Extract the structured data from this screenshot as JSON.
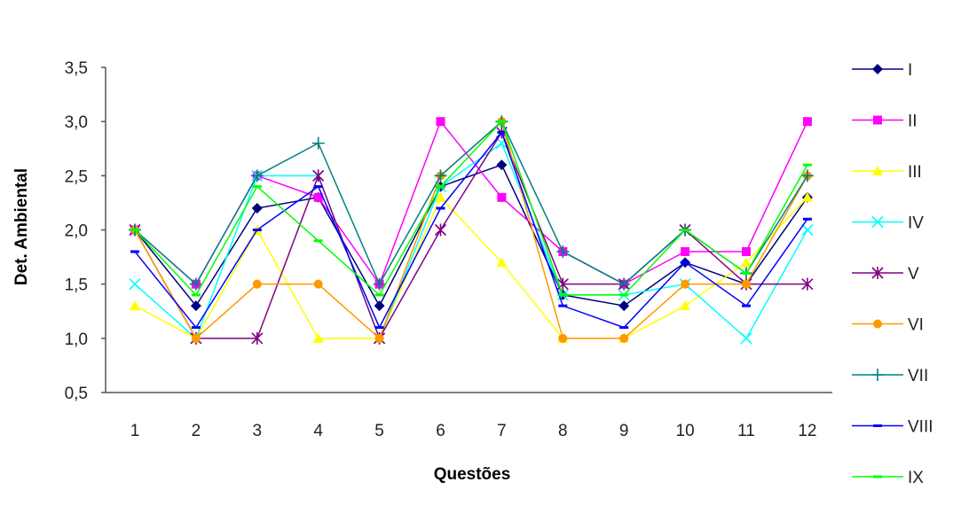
{
  "chart_data": {
    "type": "line",
    "title": "",
    "xlabel": "Questões",
    "ylabel": "Det. Ambiental",
    "ylim": [
      0.5,
      3.5
    ],
    "y_ticks": [
      "0,5",
      "1,0",
      "1,5",
      "2,0",
      "2,5",
      "3,0",
      "3,5"
    ],
    "categories": [
      "1",
      "2",
      "3",
      "4",
      "5",
      "6",
      "7",
      "8",
      "9",
      "10",
      "11",
      "12"
    ],
    "grid": false,
    "legend_position": "right",
    "series": [
      {
        "name": "I",
        "color": "#000080",
        "marker": "diamond",
        "values": [
          2.0,
          1.3,
          2.2,
          2.3,
          1.3,
          2.4,
          2.6,
          1.4,
          1.3,
          1.7,
          1.5,
          2.3
        ]
      },
      {
        "name": "II",
        "color": "#FF00FF",
        "marker": "square",
        "values": [
          2.0,
          1.5,
          2.5,
          2.3,
          1.5,
          3.0,
          2.3,
          1.8,
          1.5,
          1.8,
          1.8,
          3.0
        ]
      },
      {
        "name": "III",
        "color": "#FFFF00",
        "marker": "triangle",
        "values": [
          1.3,
          1.0,
          2.0,
          1.0,
          1.0,
          2.3,
          1.7,
          1.0,
          1.0,
          1.3,
          1.7,
          2.3
        ]
      },
      {
        "name": "IV",
        "color": "#00FFFF",
        "marker": "x",
        "values": [
          1.5,
          1.0,
          2.5,
          2.5,
          1.0,
          2.4,
          2.8,
          1.4,
          1.4,
          1.5,
          1.0,
          2.0
        ]
      },
      {
        "name": "V",
        "color": "#800080",
        "marker": "asterisk",
        "values": [
          2.0,
          1.0,
          1.0,
          2.5,
          1.0,
          2.0,
          2.9,
          1.5,
          1.5,
          2.0,
          1.5,
          1.5
        ]
      },
      {
        "name": "VI",
        "color": "#FF9900",
        "marker": "circle",
        "values": [
          2.0,
          1.0,
          1.5,
          1.5,
          1.0,
          2.5,
          3.0,
          1.0,
          1.0,
          1.5,
          1.5,
          2.5
        ]
      },
      {
        "name": "VII",
        "color": "#008080",
        "marker": "plus",
        "values": [
          2.0,
          1.5,
          2.5,
          2.8,
          1.5,
          2.5,
          3.0,
          1.8,
          1.5,
          2.0,
          1.6,
          2.5
        ]
      },
      {
        "name": "VIII",
        "color": "#0000FF",
        "marker": "dash",
        "values": [
          1.8,
          1.1,
          2.0,
          2.4,
          1.1,
          2.2,
          2.9,
          1.3,
          1.1,
          1.7,
          1.3,
          2.1
        ]
      },
      {
        "name": "IX",
        "color": "#00FF00",
        "marker": "dash",
        "values": [
          2.0,
          1.4,
          2.4,
          1.9,
          1.4,
          2.4,
          3.0,
          1.4,
          1.4,
          2.0,
          1.6,
          2.6
        ]
      }
    ]
  }
}
